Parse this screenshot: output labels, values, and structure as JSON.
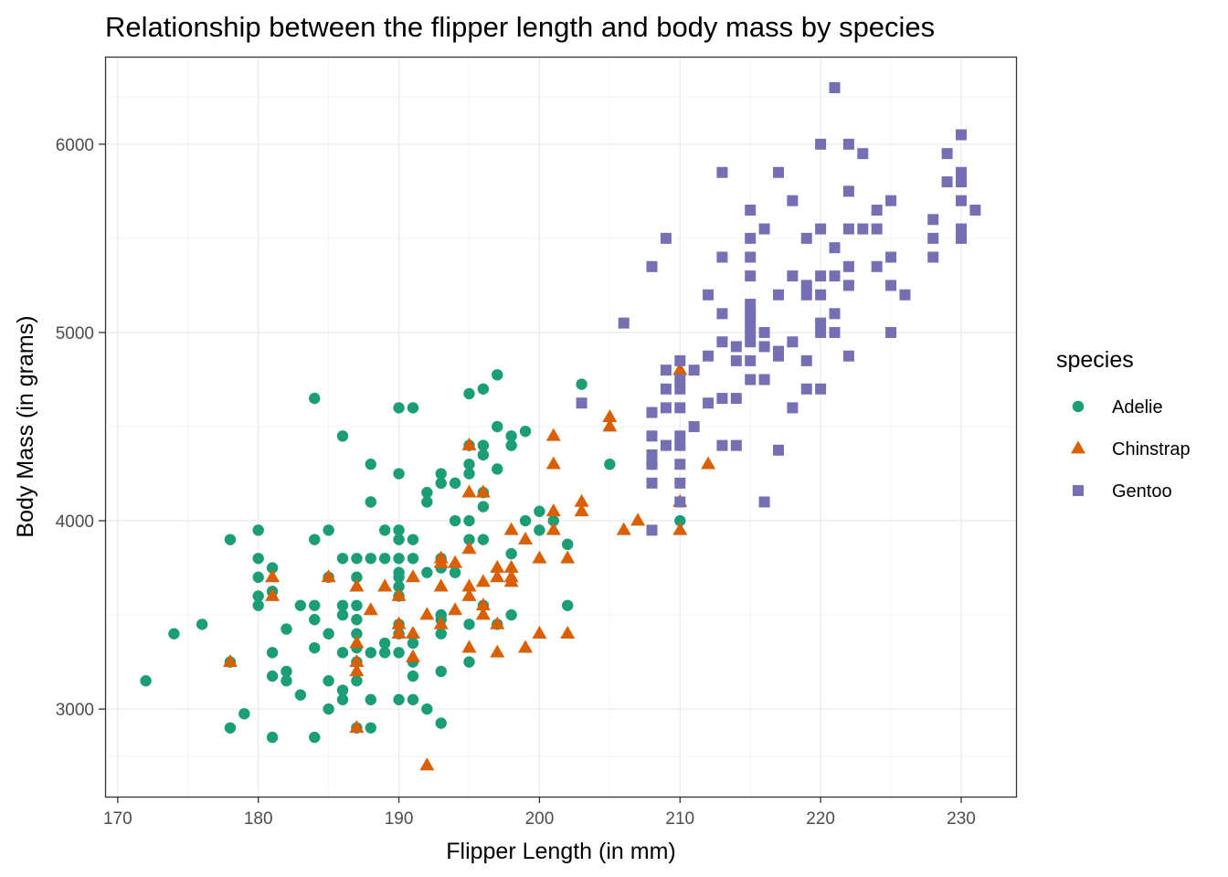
{
  "chart_data": {
    "type": "scatter",
    "title": "Relationship between the flipper length and body mass by species",
    "xlabel": "Flipper Length (in mm)",
    "ylabel": "Body Mass (in grams)",
    "xlim": [
      169.1,
      233.9
    ],
    "ylim": [
      2535,
      6465
    ],
    "x_ticks": [
      170,
      180,
      190,
      200,
      210,
      220,
      230
    ],
    "y_ticks": [
      3000,
      4000,
      5000,
      6000
    ],
    "x_tick_labels": [
      "170",
      "180",
      "190",
      "200",
      "210",
      "220",
      "230"
    ],
    "y_tick_labels": [
      "3000",
      "4000",
      "5000",
      "6000"
    ],
    "grid": true,
    "legend_title": "species",
    "legend_position": "right",
    "series": [
      {
        "name": "Adelie",
        "color": "#1b9e77",
        "shape": "circle",
        "points": [
          [
            172,
            3150
          ],
          [
            174,
            3400
          ],
          [
            176,
            3450
          ],
          [
            178,
            3250
          ],
          [
            178,
            3900
          ],
          [
            178,
            2900
          ],
          [
            179,
            2975
          ],
          [
            180,
            3950
          ],
          [
            180,
            3800
          ],
          [
            180,
            3700
          ],
          [
            180,
            3600
          ],
          [
            180,
            3550
          ],
          [
            181,
            3750
          ],
          [
            181,
            3625
          ],
          [
            181,
            3300
          ],
          [
            181,
            3175
          ],
          [
            181,
            2850
          ],
          [
            182,
            3425
          ],
          [
            182,
            3200
          ],
          [
            182,
            3150
          ],
          [
            183,
            3550
          ],
          [
            183,
            3075
          ],
          [
            184,
            4650
          ],
          [
            184,
            3900
          ],
          [
            184,
            3550
          ],
          [
            184,
            3475
          ],
          [
            184,
            3325
          ],
          [
            184,
            2850
          ],
          [
            185,
            3950
          ],
          [
            185,
            3700
          ],
          [
            185,
            3400
          ],
          [
            185,
            3150
          ],
          [
            185,
            3000
          ],
          [
            186,
            4450
          ],
          [
            186,
            3800
          ],
          [
            186,
            3550
          ],
          [
            186,
            3500
          ],
          [
            186,
            3300
          ],
          [
            186,
            3100
          ],
          [
            186,
            3050
          ],
          [
            187,
            3800
          ],
          [
            187,
            3700
          ],
          [
            187,
            3550
          ],
          [
            187,
            3475
          ],
          [
            187,
            3400
          ],
          [
            187,
            3325
          ],
          [
            187,
            3250
          ],
          [
            187,
            3150
          ],
          [
            187,
            2900
          ],
          [
            188,
            4300
          ],
          [
            188,
            4100
          ],
          [
            188,
            3800
          ],
          [
            188,
            3300
          ],
          [
            188,
            3050
          ],
          [
            188,
            2900
          ],
          [
            189,
            3950
          ],
          [
            189,
            3800
          ],
          [
            189,
            3350
          ],
          [
            189,
            3300
          ],
          [
            190,
            4600
          ],
          [
            190,
            4250
          ],
          [
            190,
            3950
          ],
          [
            190,
            3900
          ],
          [
            190,
            3800
          ],
          [
            190,
            3725
          ],
          [
            190,
            3700
          ],
          [
            190,
            3650
          ],
          [
            190,
            3600
          ],
          [
            190,
            3450
          ],
          [
            190,
            3400
          ],
          [
            190,
            3300
          ],
          [
            190,
            3050
          ],
          [
            191,
            4600
          ],
          [
            191,
            3900
          ],
          [
            191,
            3800
          ],
          [
            191,
            3350
          ],
          [
            191,
            3250
          ],
          [
            191,
            3175
          ],
          [
            191,
            3050
          ],
          [
            192,
            4150
          ],
          [
            192,
            4100
          ],
          [
            192,
            3725
          ],
          [
            192,
            3000
          ],
          [
            193,
            4250
          ],
          [
            193,
            4200
          ],
          [
            193,
            3800
          ],
          [
            193,
            3750
          ],
          [
            193,
            3500
          ],
          [
            193,
            3475
          ],
          [
            193,
            3400
          ],
          [
            193,
            3200
          ],
          [
            193,
            2925
          ],
          [
            194,
            4200
          ],
          [
            194,
            4000
          ],
          [
            194,
            3725
          ],
          [
            195,
            4675
          ],
          [
            195,
            4400
          ],
          [
            195,
            4300
          ],
          [
            195,
            4250
          ],
          [
            195,
            4000
          ],
          [
            195,
            3900
          ],
          [
            195,
            3450
          ],
          [
            195,
            3250
          ],
          [
            196,
            4700
          ],
          [
            196,
            4400
          ],
          [
            196,
            4350
          ],
          [
            196,
            4150
          ],
          [
            196,
            4075
          ],
          [
            196,
            3900
          ],
          [
            196,
            3550
          ],
          [
            197,
            4775
          ],
          [
            197,
            4500
          ],
          [
            197,
            4275
          ],
          [
            197,
            3450
          ],
          [
            198,
            4450
          ],
          [
            198,
            4400
          ],
          [
            198,
            3825
          ],
          [
            198,
            3500
          ],
          [
            199,
            4475
          ],
          [
            199,
            4000
          ],
          [
            200,
            4050
          ],
          [
            200,
            3950
          ],
          [
            201,
            4000
          ],
          [
            202,
            3875
          ],
          [
            202,
            3550
          ],
          [
            203,
            4725
          ],
          [
            205,
            4300
          ],
          [
            208,
            4300
          ],
          [
            210,
            4000
          ]
        ]
      },
      {
        "name": "Chinstrap",
        "color": "#d95f02",
        "shape": "triangle",
        "points": [
          [
            178,
            3250
          ],
          [
            181,
            3700
          ],
          [
            181,
            3600
          ],
          [
            185,
            3700
          ],
          [
            187,
            3650
          ],
          [
            187,
            3350
          ],
          [
            187,
            3250
          ],
          [
            187,
            3200
          ],
          [
            187,
            2900
          ],
          [
            188,
            3525
          ],
          [
            189,
            3650
          ],
          [
            190,
            3600
          ],
          [
            190,
            3450
          ],
          [
            190,
            3400
          ],
          [
            191,
            3700
          ],
          [
            191,
            3400
          ],
          [
            191,
            3275
          ],
          [
            192,
            3500
          ],
          [
            192,
            2700
          ],
          [
            193,
            3800
          ],
          [
            193,
            3775
          ],
          [
            193,
            3650
          ],
          [
            193,
            3450
          ],
          [
            194,
            3775
          ],
          [
            194,
            3525
          ],
          [
            195,
            4400
          ],
          [
            195,
            4150
          ],
          [
            195,
            3850
          ],
          [
            195,
            3650
          ],
          [
            195,
            3600
          ],
          [
            195,
            3325
          ],
          [
            196,
            4150
          ],
          [
            196,
            3675
          ],
          [
            196,
            3550
          ],
          [
            196,
            3500
          ],
          [
            197,
            3750
          ],
          [
            197,
            3700
          ],
          [
            197,
            3450
          ],
          [
            197,
            3300
          ],
          [
            198,
            3950
          ],
          [
            198,
            3750
          ],
          [
            198,
            3700
          ],
          [
            198,
            3675
          ],
          [
            199,
            3900
          ],
          [
            199,
            3325
          ],
          [
            200,
            3800
          ],
          [
            200,
            3400
          ],
          [
            201,
            4450
          ],
          [
            201,
            4300
          ],
          [
            201,
            4050
          ],
          [
            201,
            3950
          ],
          [
            202,
            3800
          ],
          [
            202,
            3400
          ],
          [
            203,
            4100
          ],
          [
            203,
            4050
          ],
          [
            205,
            4550
          ],
          [
            205,
            4500
          ],
          [
            206,
            3950
          ],
          [
            207,
            4000
          ],
          [
            210,
            4800
          ],
          [
            210,
            4100
          ],
          [
            210,
            3950
          ],
          [
            212,
            4300
          ]
        ]
      },
      {
        "name": "Gentoo",
        "color": "#7570b3",
        "shape": "square",
        "points": [
          [
            203,
            4625
          ],
          [
            206,
            5050
          ],
          [
            208,
            5350
          ],
          [
            208,
            4575
          ],
          [
            208,
            4450
          ],
          [
            208,
            4350
          ],
          [
            208,
            4300
          ],
          [
            208,
            4200
          ],
          [
            208,
            3950
          ],
          [
            209,
            5500
          ],
          [
            209,
            4800
          ],
          [
            209,
            4700
          ],
          [
            209,
            4600
          ],
          [
            209,
            4400
          ],
          [
            210,
            4850
          ],
          [
            210,
            4750
          ],
          [
            210,
            4700
          ],
          [
            210,
            4600
          ],
          [
            210,
            4450
          ],
          [
            210,
            4400
          ],
          [
            210,
            4300
          ],
          [
            210,
            4200
          ],
          [
            210,
            4100
          ],
          [
            211,
            4800
          ],
          [
            211,
            4500
          ],
          [
            212,
            5200
          ],
          [
            212,
            4875
          ],
          [
            212,
            4625
          ],
          [
            213,
            5850
          ],
          [
            213,
            5400
          ],
          [
            213,
            5100
          ],
          [
            213,
            4950
          ],
          [
            213,
            4650
          ],
          [
            213,
            4400
          ],
          [
            214,
            4925
          ],
          [
            214,
            4850
          ],
          [
            214,
            4650
          ],
          [
            214,
            4400
          ],
          [
            215,
            5650
          ],
          [
            215,
            5500
          ],
          [
            215,
            5400
          ],
          [
            215,
            5300
          ],
          [
            215,
            5150
          ],
          [
            215,
            5100
          ],
          [
            215,
            5050
          ],
          [
            215,
            5000
          ],
          [
            215,
            4950
          ],
          [
            215,
            4850
          ],
          [
            215,
            4750
          ],
          [
            216,
            5550
          ],
          [
            216,
            5000
          ],
          [
            216,
            4925
          ],
          [
            216,
            4750
          ],
          [
            216,
            4100
          ],
          [
            217,
            5850
          ],
          [
            217,
            5200
          ],
          [
            217,
            4900
          ],
          [
            217,
            4875
          ],
          [
            217,
            4375
          ],
          [
            218,
            5700
          ],
          [
            218,
            5300
          ],
          [
            218,
            4950
          ],
          [
            218,
            4600
          ],
          [
            219,
            5500
          ],
          [
            219,
            5250
          ],
          [
            219,
            5200
          ],
          [
            219,
            4850
          ],
          [
            219,
            4700
          ],
          [
            220,
            6000
          ],
          [
            220,
            5550
          ],
          [
            220,
            5300
          ],
          [
            220,
            5200
          ],
          [
            220,
            5050
          ],
          [
            220,
            5000
          ],
          [
            220,
            4700
          ],
          [
            221,
            6300
          ],
          [
            221,
            5450
          ],
          [
            221,
            5300
          ],
          [
            221,
            5100
          ],
          [
            221,
            5000
          ],
          [
            222,
            6000
          ],
          [
            222,
            5750
          ],
          [
            222,
            5550
          ],
          [
            222,
            5350
          ],
          [
            222,
            5250
          ],
          [
            222,
            4875
          ],
          [
            223,
            5950
          ],
          [
            223,
            5550
          ],
          [
            224,
            5650
          ],
          [
            224,
            5550
          ],
          [
            224,
            5350
          ],
          [
            225,
            5700
          ],
          [
            225,
            5400
          ],
          [
            225,
            5250
          ],
          [
            225,
            5000
          ],
          [
            226,
            5200
          ],
          [
            228,
            5600
          ],
          [
            228,
            5500
          ],
          [
            228,
            5400
          ],
          [
            229,
            5950
          ],
          [
            229,
            5800
          ],
          [
            230,
            6050
          ],
          [
            230,
            5850
          ],
          [
            230,
            5800
          ],
          [
            230,
            5700
          ],
          [
            230,
            5550
          ],
          [
            230,
            5500
          ],
          [
            231,
            5650
          ]
        ]
      }
    ]
  }
}
